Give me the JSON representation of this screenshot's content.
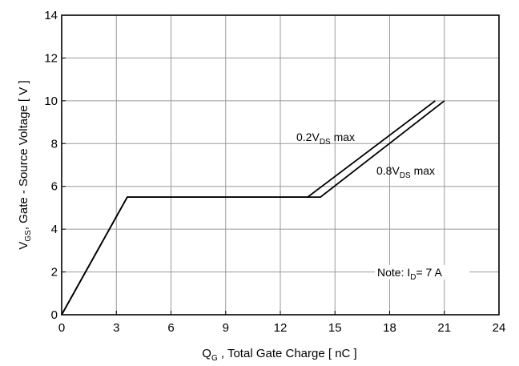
{
  "chart_data": {
    "type": "line",
    "xlabel": "Q G , Total Gate Charge [ nC ]",
    "ylabel": "VGS, Gate - Source Voltage [ V ]",
    "xlim": [
      0,
      24
    ],
    "ylim": [
      0,
      14
    ],
    "xticks": [
      0,
      3,
      6,
      9,
      12,
      15,
      18,
      21,
      24
    ],
    "yticks": [
      0,
      2,
      4,
      6,
      8,
      10,
      12,
      14
    ],
    "grid": true,
    "series": [
      {
        "name": "0.2VDS max",
        "x": [
          0,
          3.6,
          13.5,
          20.5
        ],
        "y": [
          0,
          5.5,
          5.5,
          10
        ]
      },
      {
        "name": "0.8VDS max",
        "x": [
          0,
          3.6,
          14.2,
          21
        ],
        "y": [
          0,
          5.5,
          5.5,
          10
        ]
      }
    ],
    "annotations": [
      {
        "text": "0.2VDS max",
        "x": 12.7,
        "y": 8.6
      },
      {
        "text": "0.8VDS max",
        "x": 17.4,
        "y": 6.6
      },
      {
        "text": "Note: ID = 7 A",
        "x": 17.4,
        "y": 2.0
      }
    ]
  }
}
